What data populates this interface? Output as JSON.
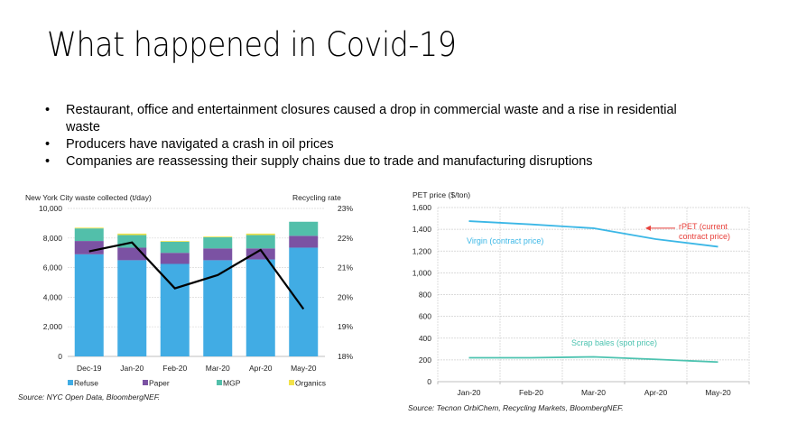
{
  "slide": {
    "title": "What happened in Covid-19",
    "bullets": [
      "Restaurant, office and entertainment closures caused a drop in commercial waste and a rise in residential waste",
      "Producers have navigated a crash in oil prices",
      "Companies are reassessing their supply chains due to trade and manufacturing disruptions"
    ],
    "bullet_glyph": "•"
  },
  "chart_data": [
    {
      "type": "bar",
      "stacked": true,
      "title": "New York City waste collected (t/day)",
      "ylabel": "New York City waste collected (t/day)",
      "y2label": "Recycling rate",
      "categories": [
        "Dec-19",
        "Jan-20",
        "Feb-20",
        "Mar-20",
        "Apr-20",
        "May-20"
      ],
      "ylim": [
        0,
        10000
      ],
      "yticks": [
        "0",
        "2,000",
        "4,000",
        "6,000",
        "8,000",
        "10,000"
      ],
      "y2lim": [
        18,
        23
      ],
      "y2ticks": [
        "18%",
        "19%",
        "20%",
        "21%",
        "22%",
        "23%"
      ],
      "series": [
        {
          "name": "Refuse",
          "color": "#41ACE4",
          "values": [
            6900,
            6500,
            6250,
            6500,
            6550,
            7350
          ]
        },
        {
          "name": "Paper",
          "color": "#7B52A3",
          "values": [
            900,
            850,
            750,
            800,
            750,
            800
          ]
        },
        {
          "name": "MGP",
          "color": "#52BFAA",
          "values": [
            850,
            850,
            750,
            750,
            900,
            950
          ]
        },
        {
          "name": "Organics",
          "color": "#F2E24A",
          "values": [
            50,
            100,
            50,
            50,
            100,
            0
          ]
        }
      ],
      "line_series": {
        "name": "Recycling rate",
        "axis": "right",
        "color": "#000000",
        "values": [
          21.55,
          21.85,
          20.3,
          20.75,
          21.6,
          19.6
        ]
      },
      "legend_position": "bottom",
      "grid": true,
      "source": "Source: NYC Open Data, BloombergNEF."
    },
    {
      "type": "line",
      "title": "PET price ($/ton)",
      "ylabel": "PET price ($/ton)",
      "categories": [
        "Jan-20",
        "Feb-20",
        "Mar-20",
        "Apr-20",
        "May-20"
      ],
      "ylim": [
        0,
        1600
      ],
      "yticks": [
        "0",
        "200",
        "400",
        "600",
        "800",
        "1,000",
        "1,200",
        "1,400",
        "1,600"
      ],
      "series": [
        {
          "name": "Virgin (contract price)",
          "color": "#3BB7E6",
          "values": [
            1475,
            1445,
            1410,
            1310,
            1240
          ]
        },
        {
          "name": "Scrap bales (spot price)",
          "color": "#4DC3B0",
          "values": [
            220,
            220,
            228,
            205,
            180
          ]
        }
      ],
      "annotations": [
        {
          "text_line1": "rPET (current",
          "text_line2": "contract price)",
          "color": "#E8413C",
          "arrow_value": 1410,
          "arrow_at": "Apr-20"
        }
      ],
      "grid": true,
      "source": "Source: Tecnon OrbiChem, Recycling Markets, BloombergNEF."
    }
  ]
}
